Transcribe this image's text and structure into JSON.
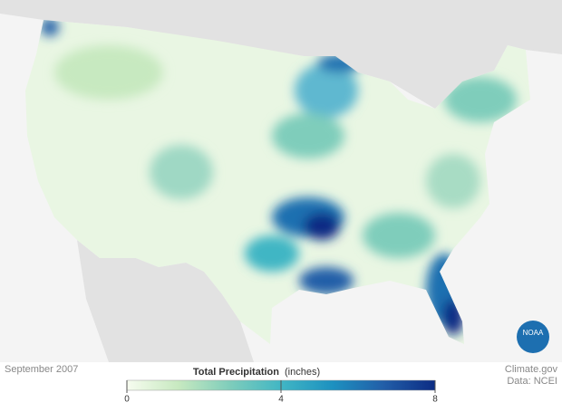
{
  "map": {
    "date": "September 2007",
    "logo": "NOAA"
  },
  "legend": {
    "title": "Total Precipitation",
    "units": "(inches)",
    "lim": [
      0,
      8
    ],
    "ticks": [
      0,
      4,
      8
    ],
    "colors": [
      "#f7fcf0",
      "#c7e9c0",
      "#7fcdbb",
      "#41b6c4",
      "#1d91c0",
      "#225ea8",
      "#0c2c84"
    ]
  },
  "credits": {
    "source": "Climate.gov",
    "data": "Data: NCEI"
  }
}
